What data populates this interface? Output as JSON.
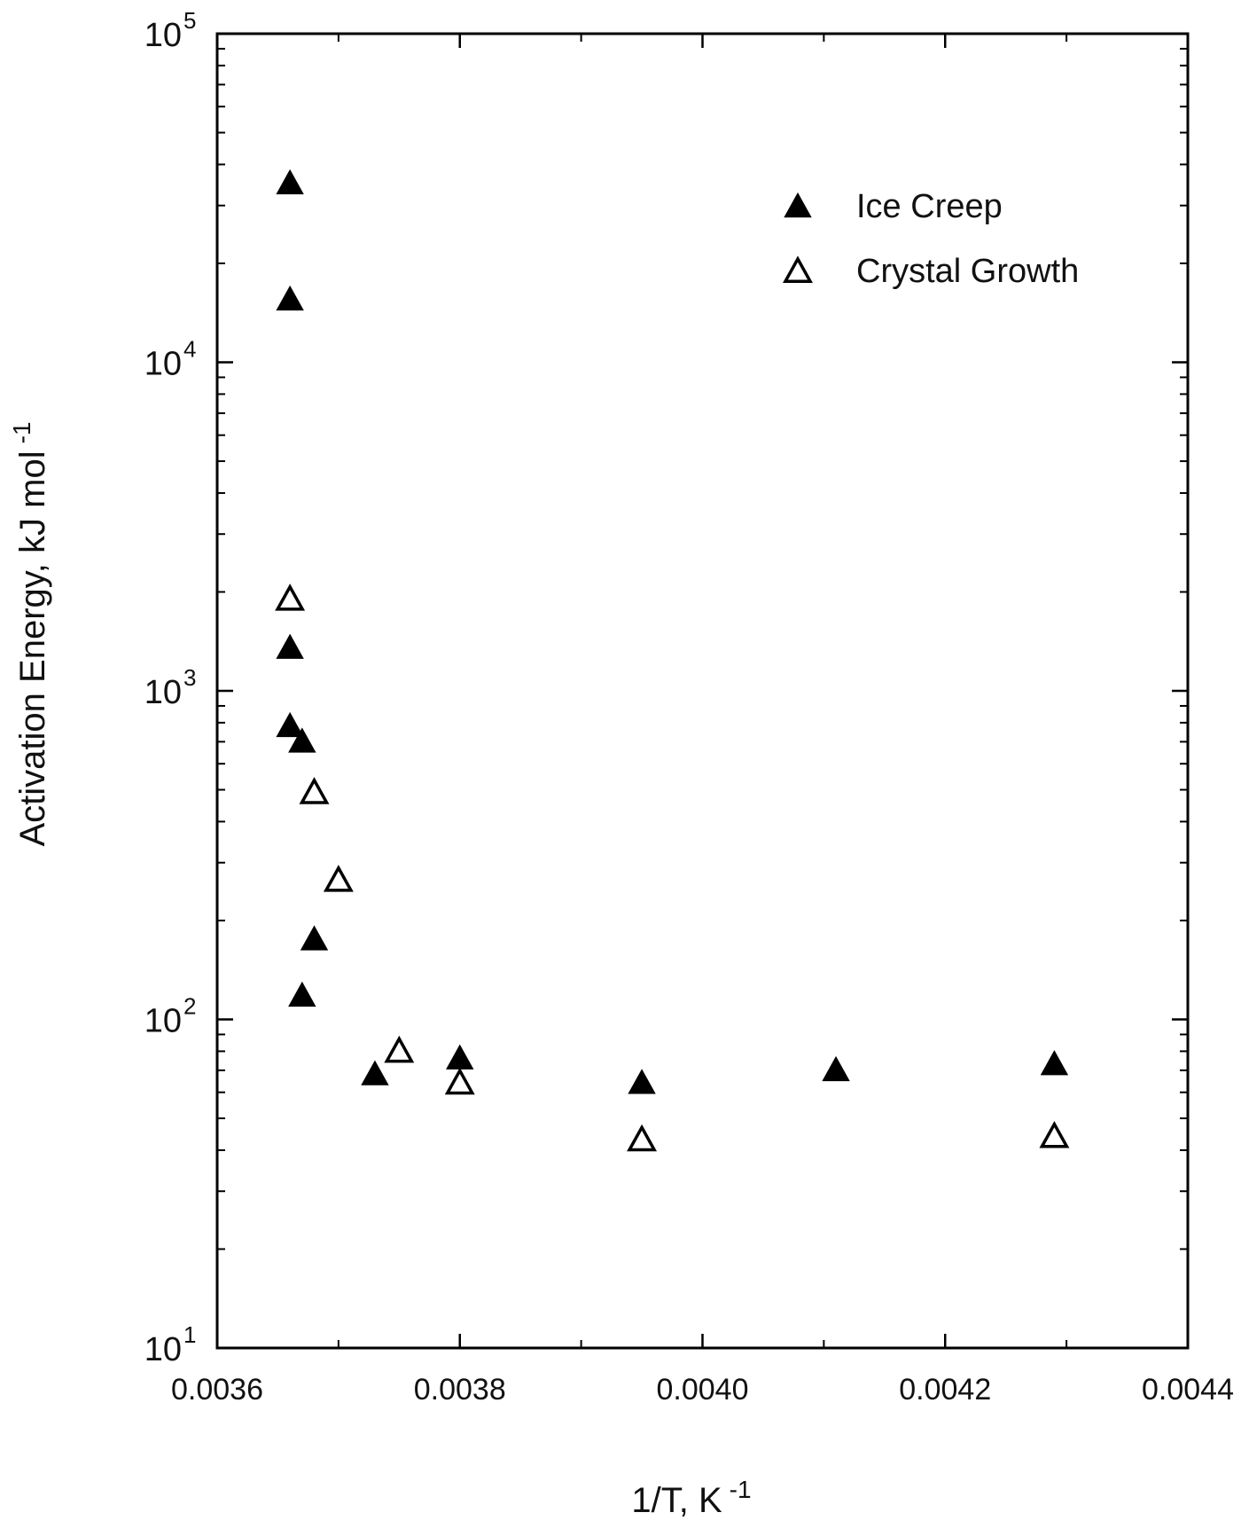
{
  "chart_data": {
    "type": "scatter",
    "xlabel": "1/T, K",
    "xlabel_exp": "-1",
    "ylabel": "Activation Energy, kJ mol",
    "ylabel_exp": "-1",
    "x_scale": "linear",
    "y_scale": "log",
    "xlim": [
      0.0036,
      0.0044
    ],
    "ylim": [
      10,
      100000
    ],
    "x_ticks": [
      {
        "value": 0.0036,
        "label": "0.0036"
      },
      {
        "value": 0.0038,
        "label": "0.0038"
      },
      {
        "value": 0.004,
        "label": "0.0040"
      },
      {
        "value": 0.0042,
        "label": "0.0042"
      },
      {
        "value": 0.0044,
        "label": "0.0044"
      }
    ],
    "y_ticks": [
      {
        "value": 10,
        "base": "10",
        "exp": "1"
      },
      {
        "value": 100,
        "base": "10",
        "exp": "2"
      },
      {
        "value": 1000,
        "base": "10",
        "exp": "3"
      },
      {
        "value": 10000,
        "base": "10",
        "exp": "4"
      },
      {
        "value": 100000,
        "base": "10",
        "exp": "5"
      }
    ],
    "grid": false,
    "legend_position": "top-right",
    "series": [
      {
        "name": "Ice Creep",
        "marker": "filled-triangle",
        "color": "#000000",
        "points": [
          {
            "x": 0.00366,
            "y": 35000
          },
          {
            "x": 0.00366,
            "y": 15500
          },
          {
            "x": 0.00366,
            "y": 1350
          },
          {
            "x": 0.00366,
            "y": 780
          },
          {
            "x": 0.00367,
            "y": 700
          },
          {
            "x": 0.00368,
            "y": 175
          },
          {
            "x": 0.00367,
            "y": 118
          },
          {
            "x": 0.00373,
            "y": 68
          },
          {
            "x": 0.0038,
            "y": 76
          },
          {
            "x": 0.00395,
            "y": 64
          },
          {
            "x": 0.00411,
            "y": 70
          },
          {
            "x": 0.00429,
            "y": 73
          }
        ]
      },
      {
        "name": "Crystal Growth",
        "marker": "open-triangle",
        "color": "#000000",
        "points": [
          {
            "x": 0.00366,
            "y": 1900
          },
          {
            "x": 0.00368,
            "y": 490
          },
          {
            "x": 0.0037,
            "y": 265
          },
          {
            "x": 0.00375,
            "y": 80
          },
          {
            "x": 0.0038,
            "y": 64
          },
          {
            "x": 0.00395,
            "y": 43
          },
          {
            "x": 0.00429,
            "y": 44
          }
        ]
      }
    ]
  }
}
